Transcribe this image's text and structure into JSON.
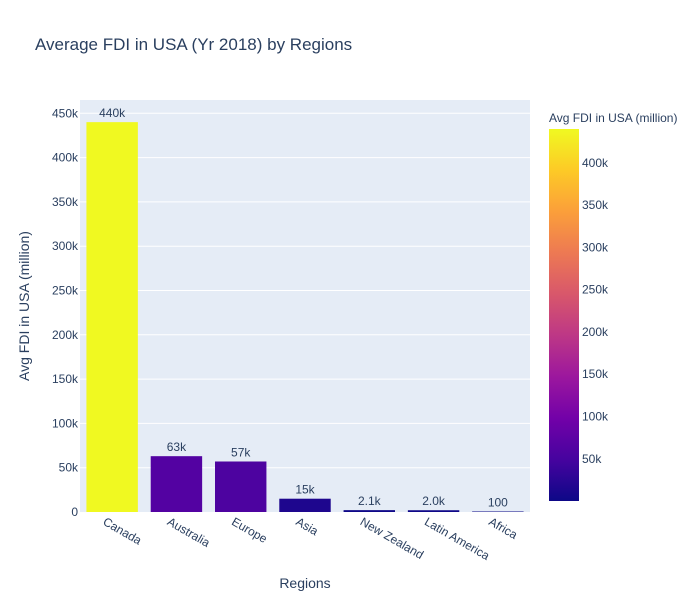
{
  "chart_data": {
    "type": "bar",
    "title": "Average FDI in USA (Yr 2018) by Regions",
    "xlabel": "Regions",
    "ylabel": "Avg FDI in USA (million)",
    "categories": [
      "Canada",
      "Australia",
      "Europe",
      "Asia",
      "New Zealand",
      "Latin America",
      "Africa"
    ],
    "values": [
      440000,
      63000,
      57000,
      15000,
      2100,
      2000,
      100
    ],
    "value_labels": [
      "440k",
      "63k",
      "57k",
      "15k",
      "2.1k",
      "2.0k",
      "100"
    ],
    "ylim": [
      0,
      465000
    ],
    "yticks": [
      0,
      50000,
      100000,
      150000,
      200000,
      250000,
      300000,
      350000,
      400000,
      450000
    ],
    "ytick_labels": [
      "0",
      "50k",
      "100k",
      "150k",
      "200k",
      "250k",
      "300k",
      "350k",
      "400k",
      "450k"
    ],
    "grid": true,
    "colorbar": {
      "title": "Avg FDI in USA (million)",
      "range": [
        100,
        440000
      ],
      "ticks": [
        50000,
        100000,
        150000,
        200000,
        250000,
        300000,
        350000,
        400000
      ],
      "tick_labels": [
        "50k",
        "100k",
        "150k",
        "200k",
        "250k",
        "300k",
        "350k",
        "400k"
      ],
      "colorscale": [
        "#0d0887",
        "#46039f",
        "#7201a8",
        "#9c179e",
        "#bd3786",
        "#d8576b",
        "#ed7953",
        "#fb9f3a",
        "#fdca26",
        "#f0f921"
      ]
    },
    "plot_background": "#e5ecf6"
  }
}
